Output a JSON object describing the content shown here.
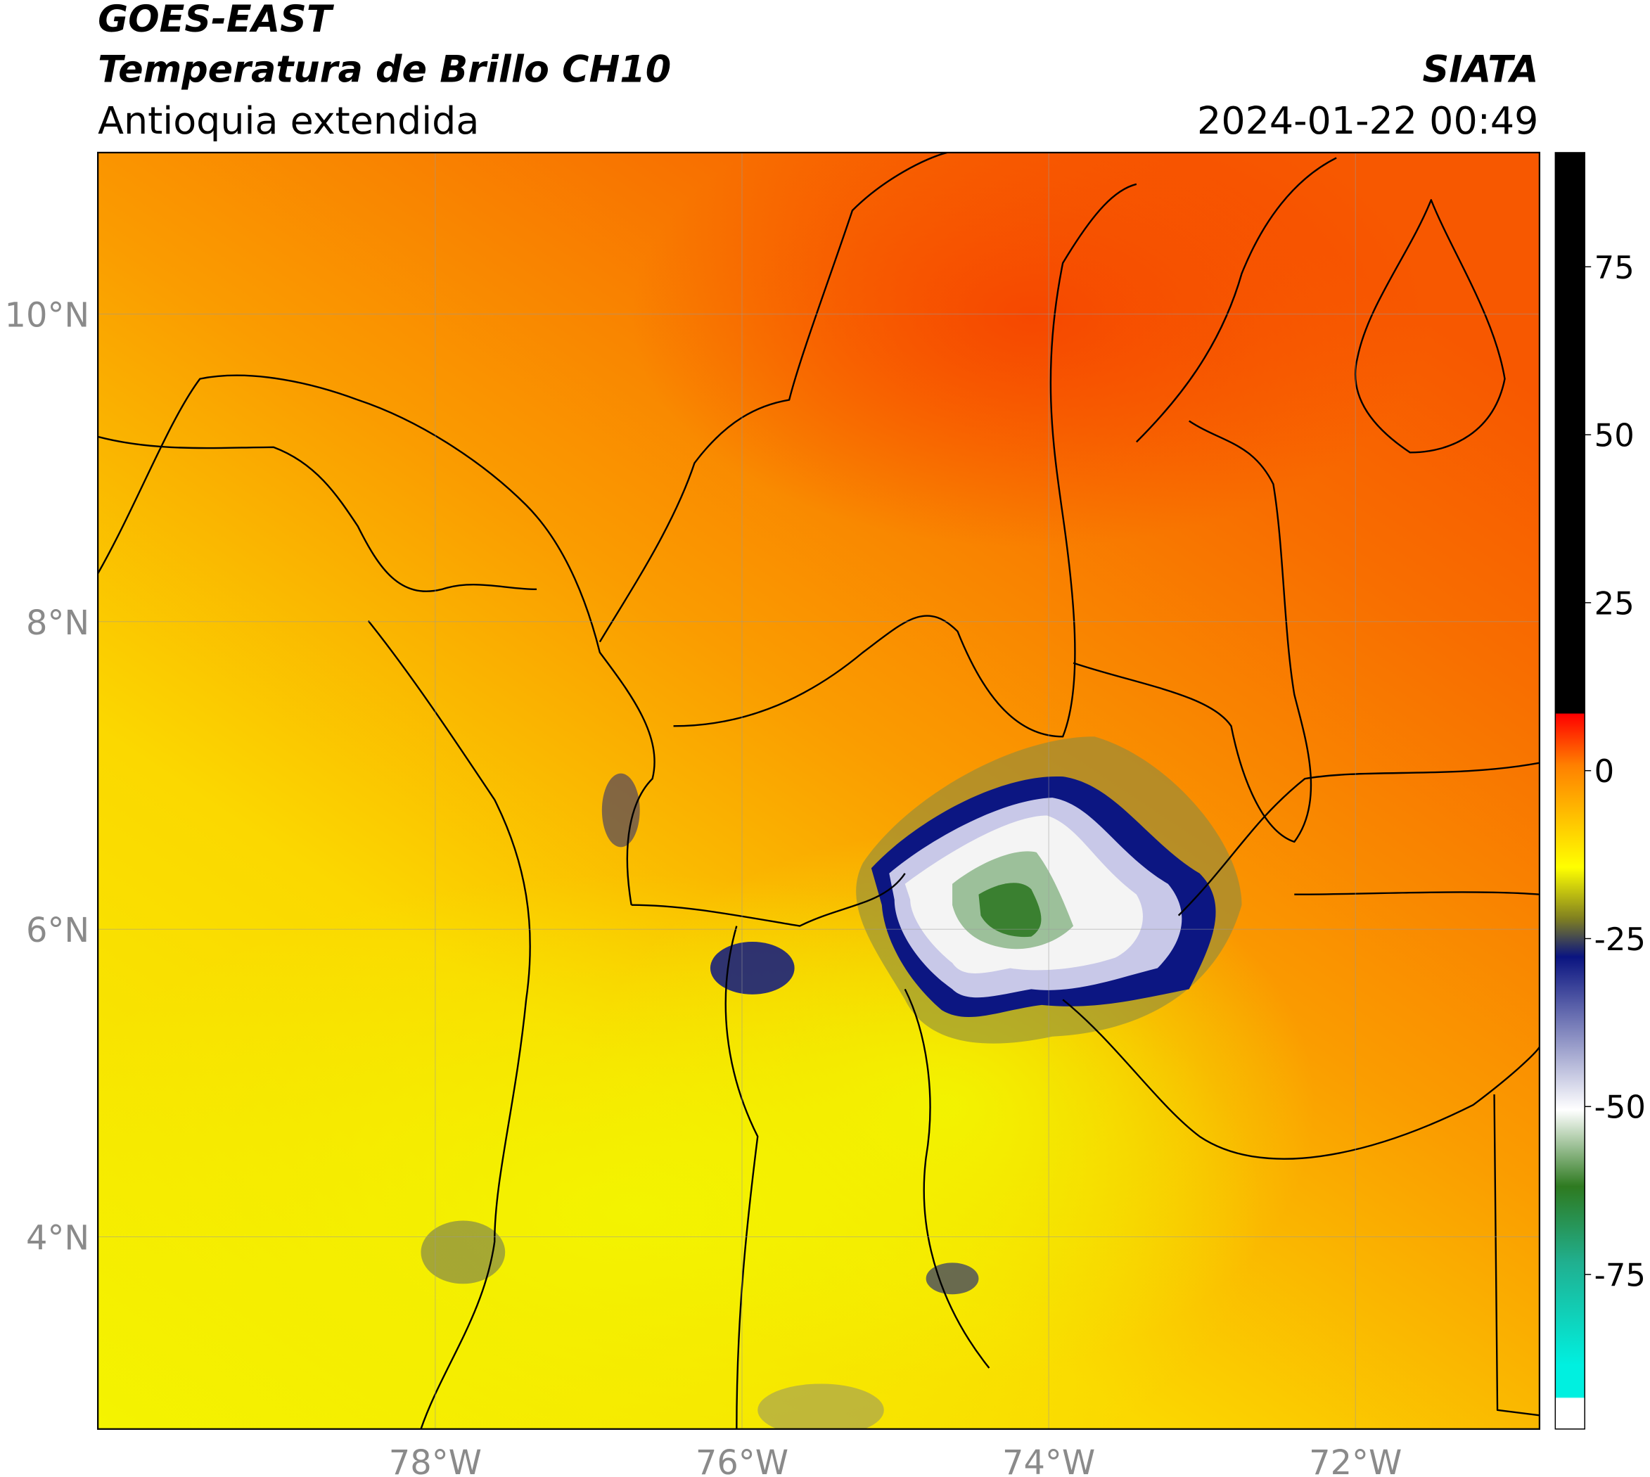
{
  "header": {
    "source": "GOES-EAST",
    "title": "Temperatura de Brillo CH10",
    "region": "Antioquia extendida",
    "agency": "SIATA",
    "datetime": "2024-01-22 00:49"
  },
  "map": {
    "lon_range": [
      -80.2,
      -70.8
    ],
    "lat_range": [
      2.75,
      11.05
    ],
    "lon_ticks": [
      {
        "value": -78,
        "label": "78°W"
      },
      {
        "value": -76,
        "label": "76°W"
      },
      {
        "value": -74,
        "label": "74°W"
      },
      {
        "value": -72,
        "label": "72°W"
      }
    ],
    "lat_ticks": [
      {
        "value": 10,
        "label": "10°N"
      },
      {
        "value": 8,
        "label": "8°N"
      },
      {
        "value": 6,
        "label": "6°N"
      },
      {
        "value": 4,
        "label": "4°N"
      }
    ]
  },
  "colorbar": {
    "range": [
      -98,
      92
    ],
    "ticks": [
      75,
      50,
      25,
      0,
      -25,
      -50,
      -75
    ]
  }
}
